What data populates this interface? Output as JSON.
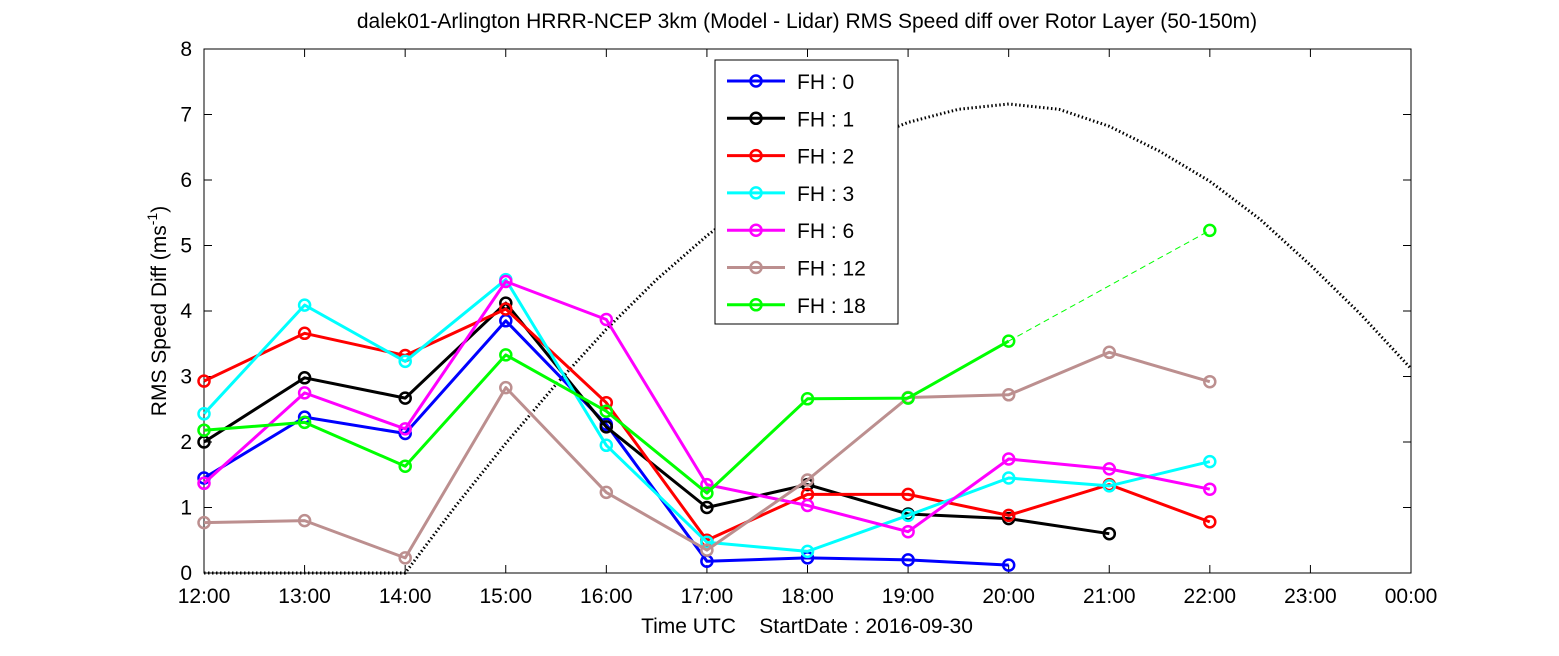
{
  "chart_data": {
    "type": "line",
    "title": "dalek01-Arlington HRRR-NCEP 3km (Model - Lidar) RMS Speed diff over Rotor Layer (50-150m)",
    "xlabel": "Time UTC    StartDate : 2016-09-30",
    "ylabel_main": "RMS Speed Diff (ms",
    "ylabel_sup": "-1",
    "ylabel_end": ")",
    "xlim": [
      "12:00",
      "00:00"
    ],
    "ylim": [
      0,
      8
    ],
    "x_tick_labels": [
      "12:00",
      "13:00",
      "14:00",
      "15:00",
      "16:00",
      "17:00",
      "18:00",
      "19:00",
      "20:00",
      "21:00",
      "22:00",
      "23:00",
      "00:00"
    ],
    "y_tick_labels": [
      "0",
      "1",
      "2",
      "3",
      "4",
      "5",
      "6",
      "7",
      "8"
    ],
    "legend_position": "top-center",
    "series": [
      {
        "name": "FH : 0",
        "color": "#0000ff",
        "x": [
          "12:00",
          "13:00",
          "14:00",
          "15:00",
          "16:00",
          "17:00",
          "18:00",
          "19:00",
          "20:00"
        ],
        "values": [
          1.45,
          2.38,
          2.13,
          3.85,
          2.27,
          0.18,
          0.23,
          0.2,
          0.12
        ]
      },
      {
        "name": "FH : 1",
        "color": "#000000",
        "x": [
          "12:00",
          "13:00",
          "14:00",
          "15:00",
          "16:00",
          "17:00",
          "18:00",
          "19:00",
          "20:00",
          "21:00"
        ],
        "values": [
          2.0,
          2.98,
          2.67,
          4.12,
          2.23,
          1.0,
          1.35,
          0.9,
          0.83,
          0.6
        ]
      },
      {
        "name": "FH : 2",
        "color": "#ff0000",
        "x": [
          "12:00",
          "13:00",
          "14:00",
          "15:00",
          "16:00",
          "17:00",
          "18:00",
          "19:00",
          "20:00",
          "21:00",
          "22:00"
        ],
        "values": [
          2.93,
          3.66,
          3.32,
          4.03,
          2.6,
          0.5,
          1.2,
          1.2,
          0.88,
          1.35,
          0.78
        ]
      },
      {
        "name": "FH : 3",
        "color": "#00ffff",
        "x": [
          "12:00",
          "13:00",
          "14:00",
          "15:00",
          "16:00",
          "17:00",
          "18:00",
          "19:00",
          "20:00",
          "21:00",
          "22:00"
        ],
        "values": [
          2.43,
          4.09,
          3.23,
          4.48,
          1.95,
          0.47,
          0.33,
          0.88,
          1.45,
          1.33,
          1.7
        ]
      },
      {
        "name": "FH : 6",
        "color": "#ff00ff",
        "x": [
          "12:00",
          "13:00",
          "14:00",
          "15:00",
          "16:00",
          "17:00",
          "18:00",
          "19:00",
          "20:00",
          "21:00",
          "22:00"
        ],
        "values": [
          1.37,
          2.75,
          2.2,
          4.45,
          3.87,
          1.35,
          1.03,
          0.63,
          1.74,
          1.59,
          1.28
        ]
      },
      {
        "name": "FH : 12",
        "color": "#bc8f8f",
        "x": [
          "12:00",
          "13:00",
          "14:00",
          "15:00",
          "16:00",
          "17:00",
          "18:00",
          "19:00",
          "20:00",
          "21:00",
          "22:00"
        ],
        "values": [
          0.77,
          0.8,
          0.23,
          2.83,
          1.23,
          0.35,
          1.42,
          2.68,
          2.72,
          3.37,
          2.92
        ]
      },
      {
        "name": "FH : 18",
        "color": "#00ff00",
        "x": [
          "12:00",
          "13:00",
          "14:00",
          "15:00",
          "16:00",
          "17:00",
          "18:00",
          "19:00",
          "20:00",
          "22:00"
        ],
        "values": [
          2.18,
          2.3,
          1.63,
          3.33,
          2.47,
          1.22,
          2.66,
          2.67,
          3.54,
          5.23
        ],
        "dashed_from": "20:00"
      }
    ],
    "reference_curve": {
      "style": "dotted",
      "color": "#000000",
      "x": [
        "12:00",
        "13:00",
        "14:00",
        "14:30",
        "15:00",
        "15:30",
        "16:00",
        "16:30",
        "17:00",
        "17:30",
        "18:00",
        "18:30",
        "19:00",
        "19:30",
        "20:00",
        "20:30",
        "21:00",
        "21:30",
        "22:00",
        "22:30",
        "23:00",
        "23:30",
        "00:00"
      ],
      "values": [
        0,
        0,
        0,
        1.02,
        1.98,
        2.88,
        3.72,
        4.48,
        5.15,
        5.73,
        6.2,
        6.58,
        6.88,
        7.08,
        7.16,
        7.08,
        6.82,
        6.44,
        5.98,
        5.4,
        4.7,
        3.95,
        3.12
      ]
    }
  }
}
